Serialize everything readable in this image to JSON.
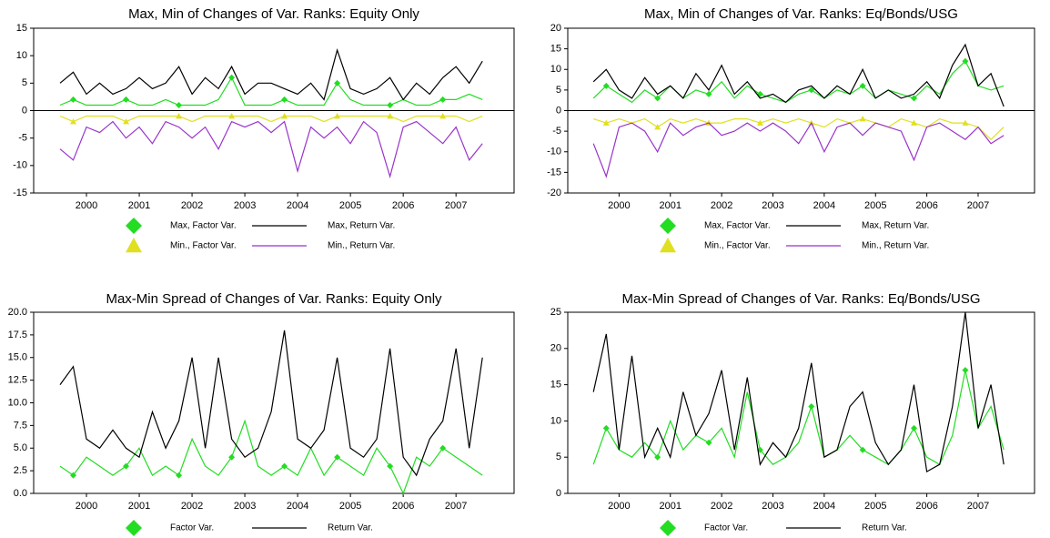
{
  "chart_data": [
    {
      "type": "line",
      "title": "Max, Min of Changes of Var. Ranks: Equity Only",
      "x": [
        2000,
        2000.25,
        2000.5,
        2000.75,
        2001,
        2001.25,
        2001.5,
        2001.75,
        2002,
        2002.25,
        2002.5,
        2002.75,
        2003,
        2003.25,
        2003.5,
        2003.75,
        2004,
        2004.25,
        2004.5,
        2004.75,
        2005,
        2005.25,
        2005.5,
        2005.75,
        2006,
        2006.25,
        2006.5,
        2006.75,
        2007,
        2007.25,
        2007.5,
        2007.75,
        2008
      ],
      "xlim": [
        1999.5,
        2008.6
      ],
      "xticks": [
        {
          "value": 2000.5,
          "label": "2000"
        },
        {
          "value": 2001.5,
          "label": "2001"
        },
        {
          "value": 2002.5,
          "label": "2002"
        },
        {
          "value": 2003.5,
          "label": "2003"
        },
        {
          "value": 2004.5,
          "label": "2004"
        },
        {
          "value": 2005.5,
          "label": "2005"
        },
        {
          "value": 2006.5,
          "label": "2006"
        },
        {
          "value": 2007.5,
          "label": "2007"
        }
      ],
      "ylim": [
        -15,
        15
      ],
      "yticks": [
        -15,
        -10,
        -5,
        0,
        5,
        10,
        15
      ],
      "zero_line": true,
      "series": [
        {
          "name": "Max, Factor Var.",
          "color": "#22dd22",
          "marker": "diamond",
          "values": [
            1,
            2,
            1,
            1,
            1,
            2,
            1,
            1,
            2,
            1,
            1,
            1,
            2,
            6,
            1,
            1,
            1,
            2,
            1,
            1,
            1,
            5,
            2,
            1,
            1,
            1,
            2,
            1,
            1,
            2,
            2,
            3,
            2
          ]
        },
        {
          "name": "Max, Return Var.",
          "color": "#000000",
          "values": [
            5,
            7,
            3,
            5,
            3,
            4,
            6,
            4,
            5,
            8,
            3,
            6,
            4,
            8,
            3,
            5,
            5,
            4,
            3,
            5,
            2,
            11,
            4,
            3,
            4,
            6,
            2,
            5,
            3,
            6,
            8,
            5,
            9
          ]
        },
        {
          "name": "Min., Factor Var.",
          "color": "#e0e020",
          "marker": "triangle",
          "values": [
            -1,
            -2,
            -1,
            -1,
            -1,
            -2,
            -1,
            -1,
            -1,
            -1,
            -2,
            -1,
            -1,
            -1,
            -1,
            -1,
            -2,
            -1,
            -1,
            -1,
            -2,
            -1,
            -1,
            -1,
            -1,
            -1,
            -2,
            -1,
            -1,
            -1,
            -1,
            -2,
            -1
          ]
        },
        {
          "name": "Min., Return Var.",
          "color": "#9933cc",
          "values": [
            -7,
            -9,
            -3,
            -4,
            -2,
            -5,
            -3,
            -6,
            -2,
            -3,
            -5,
            -3,
            -7,
            -2,
            -3,
            -2,
            -4,
            -2,
            -11,
            -3,
            -5,
            -3,
            -6,
            -2,
            -4,
            -12,
            -3,
            -2,
            -4,
            -6,
            -3,
            -9,
            -6
          ]
        }
      ]
    },
    {
      "type": "line",
      "title": "Max, Min of Changes of Var. Ranks: Eq/Bonds/USG",
      "x": [
        2000,
        2000.25,
        2000.5,
        2000.75,
        2001,
        2001.25,
        2001.5,
        2001.75,
        2002,
        2002.25,
        2002.5,
        2002.75,
        2003,
        2003.25,
        2003.5,
        2003.75,
        2004,
        2004.25,
        2004.5,
        2004.75,
        2005,
        2005.25,
        2005.5,
        2005.75,
        2006,
        2006.25,
        2006.5,
        2006.75,
        2007,
        2007.25,
        2007.5,
        2007.75,
        2008
      ],
      "xlim": [
        1999.5,
        2008.6
      ],
      "xticks": [
        {
          "value": 2000.5,
          "label": "2000"
        },
        {
          "value": 2001.5,
          "label": "2001"
        },
        {
          "value": 2002.5,
          "label": "2002"
        },
        {
          "value": 2003.5,
          "label": "2003"
        },
        {
          "value": 2004.5,
          "label": "2004"
        },
        {
          "value": 2005.5,
          "label": "2005"
        },
        {
          "value": 2006.5,
          "label": "2006"
        },
        {
          "value": 2007.5,
          "label": "2007"
        }
      ],
      "ylim": [
        -20,
        20
      ],
      "yticks": [
        -20,
        -15,
        -10,
        -5,
        0,
        5,
        10,
        15,
        20
      ],
      "zero_line": true,
      "series": [
        {
          "name": "Max, Factor Var.",
          "color": "#22dd22",
          "marker": "diamond",
          "values": [
            3,
            6,
            4,
            2,
            5,
            3,
            6,
            3,
            5,
            4,
            7,
            3,
            6,
            4,
            3,
            2,
            4,
            5,
            3,
            5,
            4,
            6,
            3,
            5,
            4,
            3,
            6,
            4,
            9,
            12,
            6,
            5,
            6
          ]
        },
        {
          "name": "Max, Return Var.",
          "color": "#000000",
          "values": [
            7,
            10,
            5,
            3,
            8,
            4,
            6,
            3,
            9,
            5,
            11,
            4,
            7,
            3,
            4,
            2,
            5,
            6,
            3,
            6,
            4,
            10,
            3,
            5,
            3,
            4,
            7,
            3,
            11,
            16,
            6,
            9,
            1
          ]
        },
        {
          "name": "Min., Factor Var.",
          "color": "#e0e020",
          "marker": "triangle",
          "values": [
            -2,
            -3,
            -2,
            -3,
            -2,
            -4,
            -2,
            -3,
            -2,
            -3,
            -3,
            -2,
            -2,
            -3,
            -2,
            -3,
            -2,
            -3,
            -4,
            -2,
            -3,
            -2,
            -3,
            -4,
            -2,
            -3,
            -4,
            -2,
            -3,
            -3,
            -4,
            -7,
            -4
          ]
        },
        {
          "name": "Min., Return Var.",
          "color": "#9933cc",
          "values": [
            -8,
            -16,
            -4,
            -3,
            -5,
            -10,
            -3,
            -6,
            -4,
            -3,
            -6,
            -5,
            -3,
            -5,
            -3,
            -5,
            -8,
            -3,
            -10,
            -4,
            -3,
            -6,
            -3,
            -4,
            -5,
            -12,
            -4,
            -3,
            -5,
            -7,
            -4,
            -8,
            -6
          ]
        }
      ]
    },
    {
      "type": "line",
      "title": "Max-Min Spread of Changes of Var. Ranks: Equity Only",
      "x": [
        2000,
        2000.25,
        2000.5,
        2000.75,
        2001,
        2001.25,
        2001.5,
        2001.75,
        2002,
        2002.25,
        2002.5,
        2002.75,
        2003,
        2003.25,
        2003.5,
        2003.75,
        2004,
        2004.25,
        2004.5,
        2004.75,
        2005,
        2005.25,
        2005.5,
        2005.75,
        2006,
        2006.25,
        2006.5,
        2006.75,
        2007,
        2007.25,
        2007.5,
        2007.75,
        2008
      ],
      "xlim": [
        1999.5,
        2008.6
      ],
      "xticks": [
        {
          "value": 2000.5,
          "label": "2000"
        },
        {
          "value": 2001.5,
          "label": "2001"
        },
        {
          "value": 2002.5,
          "label": "2002"
        },
        {
          "value": 2003.5,
          "label": "2003"
        },
        {
          "value": 2004.5,
          "label": "2004"
        },
        {
          "value": 2005.5,
          "label": "2005"
        },
        {
          "value": 2006.5,
          "label": "2006"
        },
        {
          "value": 2007.5,
          "label": "2007"
        }
      ],
      "ylim": [
        0,
        20
      ],
      "yticks": [
        {
          "value": 0,
          "label": "0.0"
        },
        {
          "value": 2.5,
          "label": "2.5"
        },
        {
          "value": 5,
          "label": "5.0"
        },
        {
          "value": 7.5,
          "label": "7.5"
        },
        {
          "value": 10,
          "label": "10.0"
        },
        {
          "value": 12.5,
          "label": "12.5"
        },
        {
          "value": 15,
          "label": "15.0"
        },
        {
          "value": 17.5,
          "label": "17.5"
        },
        {
          "value": 20,
          "label": "20.0"
        }
      ],
      "zero_line": false,
      "series": [
        {
          "name": "Factor Var.",
          "color": "#22dd22",
          "marker": "diamond",
          "values": [
            3,
            2,
            4,
            3,
            2,
            3,
            5,
            2,
            3,
            2,
            6,
            3,
            2,
            4,
            8,
            3,
            2,
            3,
            2,
            5,
            2,
            4,
            3,
            2,
            5,
            3,
            0,
            4,
            3,
            5,
            4,
            3,
            2
          ]
        },
        {
          "name": "Return Var.",
          "color": "#000000",
          "values": [
            12,
            14,
            6,
            5,
            7,
            5,
            4,
            9,
            5,
            8,
            15,
            5,
            15,
            6,
            4,
            5,
            9,
            18,
            6,
            5,
            7,
            15,
            5,
            4,
            6,
            16,
            4,
            2,
            6,
            8,
            16,
            5,
            15
          ]
        }
      ]
    },
    {
      "type": "line",
      "title": "Max-Min Spread of Changes of Var. Ranks: Eq/Bonds/USG",
      "x": [
        2000,
        2000.25,
        2000.5,
        2000.75,
        2001,
        2001.25,
        2001.5,
        2001.75,
        2002,
        2002.25,
        2002.5,
        2002.75,
        2003,
        2003.25,
        2003.5,
        2003.75,
        2004,
        2004.25,
        2004.5,
        2004.75,
        2005,
        2005.25,
        2005.5,
        2005.75,
        2006,
        2006.25,
        2006.5,
        2006.75,
        2007,
        2007.25,
        2007.5,
        2007.75,
        2008
      ],
      "xlim": [
        1999.5,
        2008.6
      ],
      "xticks": [
        {
          "value": 2000.5,
          "label": "2000"
        },
        {
          "value": 2001.5,
          "label": "2001"
        },
        {
          "value": 2002.5,
          "label": "2002"
        },
        {
          "value": 2003.5,
          "label": "2003"
        },
        {
          "value": 2004.5,
          "label": "2004"
        },
        {
          "value": 2005.5,
          "label": "2005"
        },
        {
          "value": 2006.5,
          "label": "2006"
        },
        {
          "value": 2007.5,
          "label": "2007"
        }
      ],
      "ylim": [
        0,
        25
      ],
      "yticks": [
        0,
        5,
        10,
        15,
        20,
        25
      ],
      "zero_line": false,
      "series": [
        {
          "name": "Factor Var.",
          "color": "#22dd22",
          "marker": "diamond",
          "values": [
            4,
            9,
            6,
            5,
            7,
            5,
            10,
            6,
            8,
            7,
            9,
            5,
            14,
            6,
            4,
            5,
            7,
            12,
            5,
            6,
            8,
            6,
            5,
            4,
            6,
            9,
            5,
            4,
            8,
            17,
            9,
            12,
            6
          ]
        },
        {
          "name": "Return Var.",
          "color": "#000000",
          "values": [
            14,
            22,
            6,
            19,
            5,
            9,
            5,
            14,
            8,
            11,
            17,
            6,
            16,
            4,
            7,
            5,
            9,
            18,
            5,
            6,
            12,
            14,
            7,
            4,
            6,
            15,
            3,
            4,
            12,
            25,
            9,
            15,
            4
          ]
        }
      ]
    }
  ]
}
